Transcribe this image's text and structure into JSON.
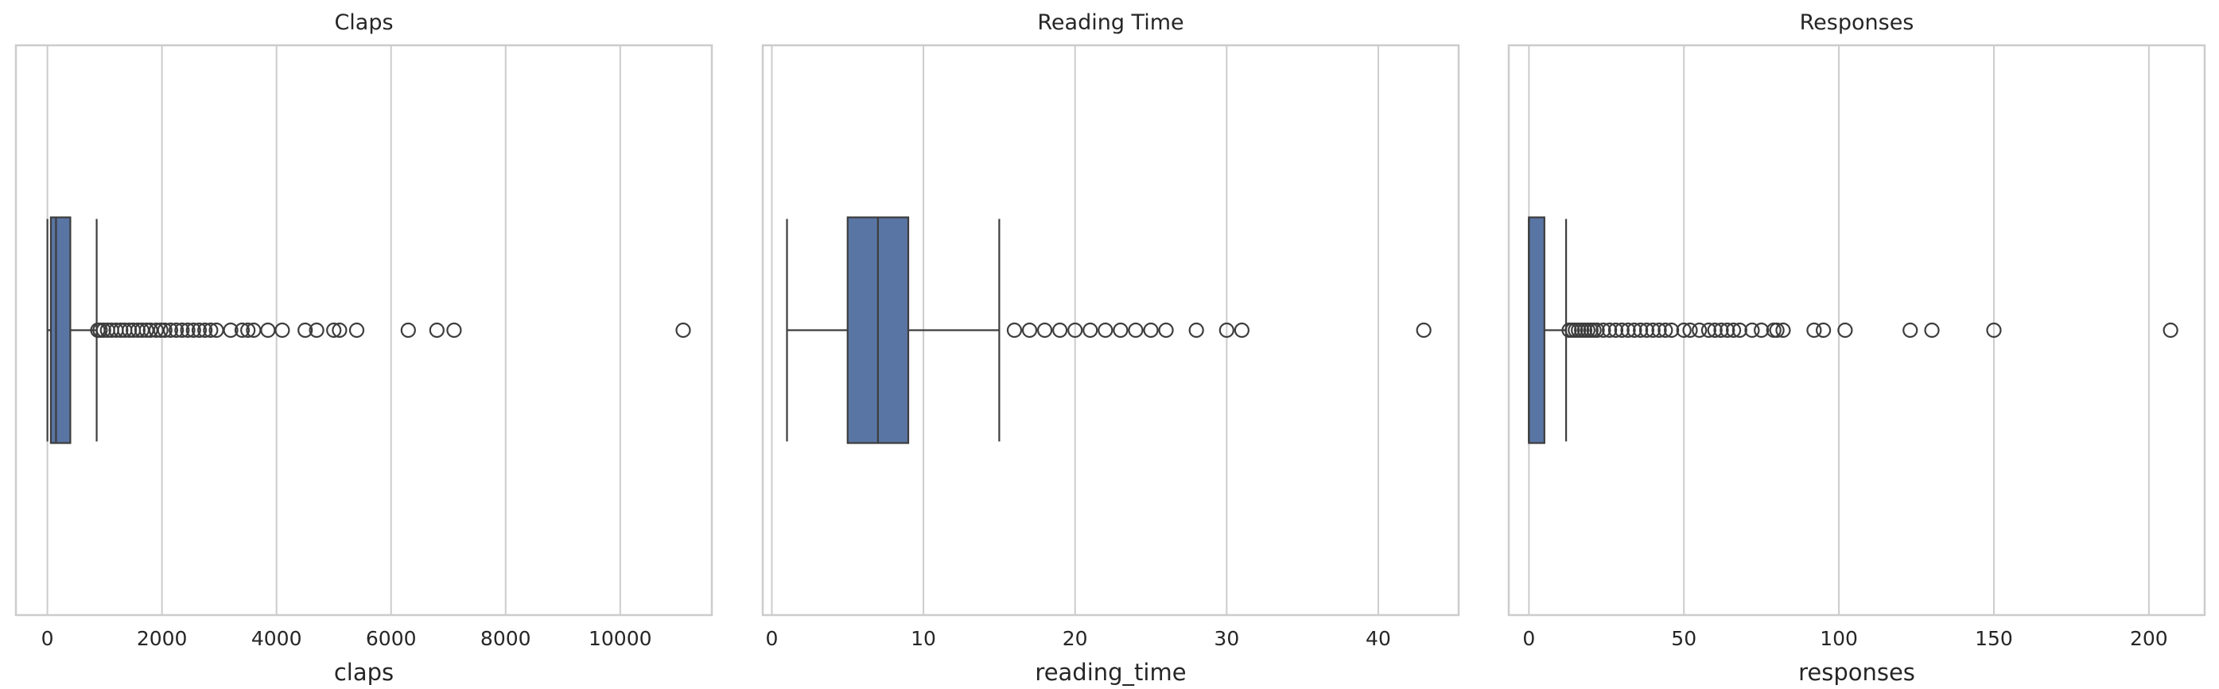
{
  "chart_data": [
    {
      "type": "boxplot",
      "orientation": "horizontal",
      "title": "Claps",
      "xlabel": "claps",
      "xlim": [
        -550,
        11600
      ],
      "xticks": [
        0,
        2000,
        4000,
        6000,
        8000,
        10000
      ],
      "xtick_labels": [
        "0",
        "2000",
        "4000",
        "6000",
        "8000",
        "10000"
      ],
      "grid": true,
      "box_color": "#5975a4",
      "box": {
        "whisker_low": 0,
        "q1": 60,
        "median": 150,
        "q3": 400,
        "whisker_high": 860
      },
      "outliers": [
        880,
        920,
        980,
        1050,
        1120,
        1200,
        1280,
        1350,
        1430,
        1500,
        1580,
        1650,
        1730,
        1800,
        1900,
        1980,
        2050,
        2150,
        2250,
        2350,
        2450,
        2550,
        2650,
        2750,
        2850,
        2950,
        3200,
        3400,
        3500,
        3600,
        3850,
        4100,
        4500,
        4700,
        5000,
        5100,
        5400,
        6300,
        6800,
        7100,
        11100
      ]
    },
    {
      "type": "boxplot",
      "orientation": "horizontal",
      "title": "Reading Time",
      "xlabel": "reading_time",
      "xlim": [
        -0.6,
        45.3
      ],
      "xticks": [
        0,
        10,
        20,
        30,
        40
      ],
      "xtick_labels": [
        "0",
        "10",
        "20",
        "30",
        "40"
      ],
      "grid": true,
      "box_color": "#5975a4",
      "box": {
        "whisker_low": 1,
        "q1": 5,
        "median": 7,
        "q3": 9,
        "whisker_high": 15
      },
      "outliers": [
        16,
        17,
        18,
        19,
        20,
        21,
        22,
        23,
        24,
        25,
        26,
        28,
        30,
        31,
        43
      ]
    },
    {
      "type": "boxplot",
      "orientation": "horizontal",
      "title": "Responses",
      "xlabel": "responses",
      "xlim": [
        -6.5,
        218
      ],
      "xticks": [
        0,
        50,
        100,
        150,
        200
      ],
      "xtick_labels": [
        "0",
        "50",
        "100",
        "150",
        "200"
      ],
      "grid": true,
      "box_color": "#5975a4",
      "box": {
        "whisker_low": 0,
        "q1": 0,
        "median": 0,
        "q3": 5,
        "whisker_high": 12
      },
      "outliers": [
        13,
        14,
        15,
        16,
        17,
        18,
        19,
        20,
        21,
        22,
        24,
        26,
        28,
        30,
        32,
        34,
        36,
        38,
        40,
        42,
        44,
        46,
        50,
        52,
        55,
        58,
        60,
        62,
        64,
        66,
        68,
        72,
        75,
        79,
        80,
        82,
        92,
        95,
        102,
        123,
        130,
        150,
        207
      ]
    }
  ]
}
